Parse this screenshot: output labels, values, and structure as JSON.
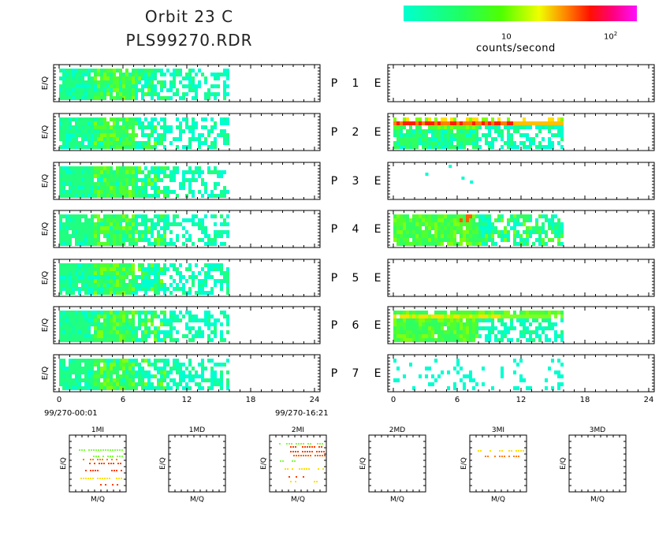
{
  "title": {
    "line1": "Orbit 23 C",
    "line2": "PLS99270.RDR"
  },
  "colorbar": {
    "label": "counts/second",
    "ticks": [
      {
        "base": "10",
        "exp": ""
      },
      {
        "base": "10",
        "exp": "2"
      }
    ],
    "colors": [
      "#00ffd0",
      "#20ff60",
      "#50ff00",
      "#f0ff00",
      "#ff8000",
      "#ff1000",
      "#ff0080",
      "#ff10ff"
    ]
  },
  "chart_data": {
    "type": "heatmap",
    "x_ticks": [
      "0",
      "6",
      "12",
      "18",
      "24"
    ],
    "xlim": [
      0,
      24
    ],
    "x_time_start": "99/270-00:01",
    "x_time_end": "99/270-16:21",
    "ylabel": "E/Q",
    "panels": [
      {
        "label": "P",
        "number": "1",
        "side": "E",
        "left_extent_hours": 16,
        "right_extent_hours": 0,
        "right_pattern": "empty"
      },
      {
        "label": "P",
        "number": "2",
        "side": "E",
        "left_extent_hours": 16,
        "right_extent_hours": 16,
        "right_pattern": "band-red"
      },
      {
        "label": "P",
        "number": "3",
        "side": "E",
        "left_extent_hours": 16,
        "right_extent_hours": 7,
        "right_pattern": "sparse-few"
      },
      {
        "label": "P",
        "number": "4",
        "side": "E",
        "left_extent_hours": 16,
        "right_extent_hours": 16,
        "right_pattern": "full-green"
      },
      {
        "label": "P",
        "number": "5",
        "side": "E",
        "left_extent_hours": 16,
        "right_extent_hours": 0,
        "right_pattern": "empty"
      },
      {
        "label": "P",
        "number": "6",
        "side": "E",
        "left_extent_hours": 16,
        "right_extent_hours": 16,
        "right_pattern": "band-yellow"
      },
      {
        "label": "P",
        "number": "7",
        "side": "E",
        "left_extent_hours": 16,
        "right_extent_hours": 16,
        "right_pattern": "sparse-cyan"
      }
    ],
    "mini_plots": [
      {
        "title": "1MI",
        "xlabel": "M/Q",
        "ylabel": "E/Q",
        "has_data": true
      },
      {
        "title": "1MD",
        "xlabel": "M/Q",
        "ylabel": "E/Q",
        "has_data": false
      },
      {
        "title": "2MI",
        "xlabel": "M/Q",
        "ylabel": "E/Q",
        "has_data": true
      },
      {
        "title": "2MD",
        "xlabel": "M/Q",
        "ylabel": "E/Q",
        "has_data": false
      },
      {
        "title": "3MI",
        "xlabel": "M/Q",
        "ylabel": "E/Q",
        "has_data": true
      },
      {
        "title": "3MD",
        "xlabel": "M/Q",
        "ylabel": "E/Q",
        "has_data": false
      }
    ]
  }
}
